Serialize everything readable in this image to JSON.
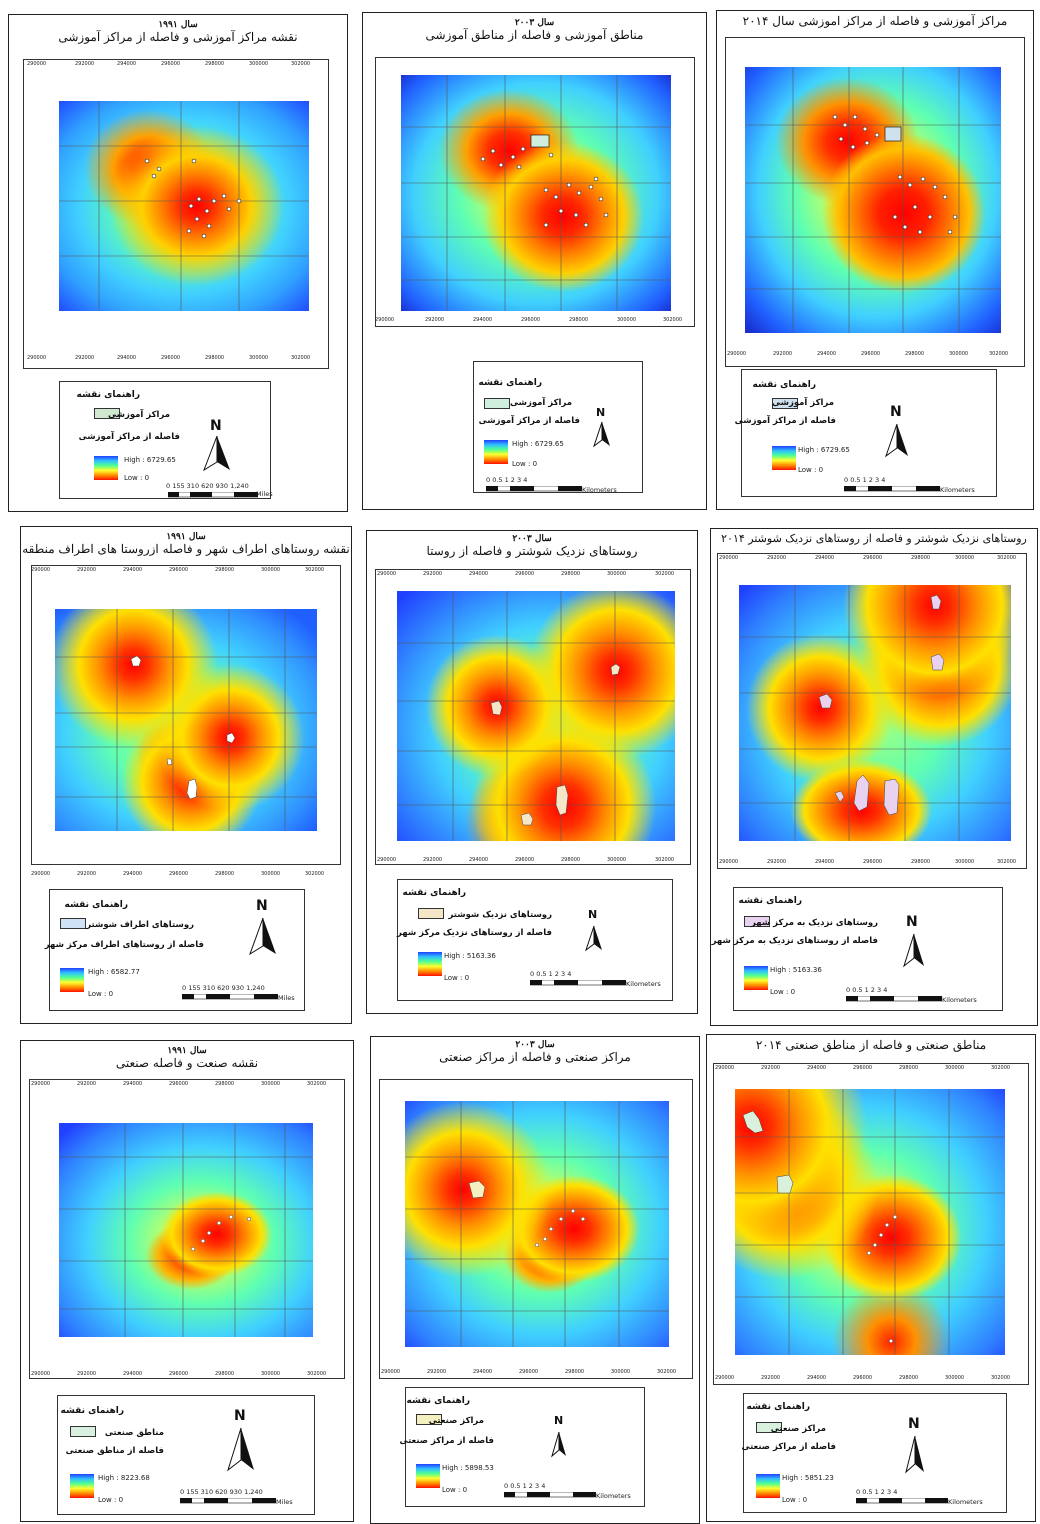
{
  "panels": [
    {
      "year": "سال ۱۹۹۱",
      "title": "نقشه مراکز آموزشی و فاصله از مراکز آموزشی",
      "legend_title": "راهنمای نقشه",
      "legend_item": "مراکز آموزشی",
      "legend_dist": "فاصله از مراکز آموزشی",
      "high": "High : 6729.65",
      "low": "Low : 0",
      "scale_labels": "0  155  310   620    930    1,240",
      "scale_unit": "Miles",
      "swatch_color": "#cfe8cf",
      "x_ticks": [
        "290000",
        "292000",
        "294000",
        "296000",
        "298000",
        "300000",
        "302000"
      ]
    },
    {
      "year": "سال ۲۰۰۳",
      "title": "مناطق آموزشی و فاصله از مناطق آموزشی",
      "legend_title": "راهنمای نقشه",
      "legend_item": "مراکز آموزشی",
      "legend_dist": "فاصله از مراکز آموزشی",
      "high": "High : 6729.65",
      "low": "Low : 0",
      "scale_labels": "0  0.5  1       2       3       4",
      "scale_unit": "Kilometers",
      "swatch_color": "#cfeede",
      "x_ticks": [
        "290000",
        "292000",
        "294000",
        "296000",
        "298000",
        "300000",
        "302000"
      ]
    },
    {
      "year": "",
      "title": "مراکز آموزشی و فاصله از مراکز اموزشی سال ۲۰۱۴",
      "legend_title": "راهنمای نقشه",
      "legend_item": "مراکز آموزشی",
      "legend_dist": "فاصله از مراکز آموزشی",
      "high": "High : 6729.65",
      "low": "Low : 0",
      "scale_labels": "0  0.5  1       2       3       4",
      "scale_unit": "Kilometers",
      "swatch_color": "#cfe0ee",
      "x_ticks": [
        "290000",
        "292000",
        "294000",
        "296000",
        "298000",
        "300000",
        "302000"
      ]
    },
    {
      "year": "سال ۱۹۹۱",
      "title": "نقشه روستاهای اطراف شهر و فاصله ازروستا های اطراف منطقه",
      "legend_title": "راهنمای نقشه",
      "legend_item": "روستاهای اطراف شوشتر",
      "legend_dist": "فاصله از روستاهای اطراف مرکز شهر",
      "high": "High : 6582.77",
      "low": "Low : 0",
      "scale_labels": "0  155  310    620    930    1,240",
      "scale_unit": "Miles",
      "swatch_color": "#cfe3f5",
      "x_ticks": [
        "290000",
        "292000",
        "294000",
        "296000",
        "298000",
        "300000",
        "302000"
      ]
    },
    {
      "year": "سال ۲۰۰۳",
      "title": "روستاهای نزدیک شوشتر و فاصله از روستا",
      "legend_title": "راهنمای نقشه",
      "legend_item": "روستاهای نزدیک شوشتر",
      "legend_dist": "فاصله از روستاهای نزدیک مرکز شهر",
      "high": "High : 5163.36",
      "low": "Low : 0",
      "scale_labels": "0  0.5  1       2       3       4",
      "scale_unit": "Kilometers",
      "swatch_color": "#f5e6c8",
      "x_ticks": [
        "290000",
        "292000",
        "294000",
        "296000",
        "298000",
        "300000",
        "302000"
      ]
    },
    {
      "year": "",
      "title": "روستاهای نزدیک شوشتر و فاصله از روستاهای نزدیک شوشتر ۲۰۱۴",
      "legend_title": "راهنمای نقشه",
      "legend_item": "روستاهای نزدیک به مرکز شهر",
      "legend_dist": "فاصله از روستاهای نزدیک به مرکز شهر",
      "high": "High : 5163.36",
      "low": "Low : 0",
      "scale_labels": "0  0.5  1       2       3       4",
      "scale_unit": "Kilometers",
      "swatch_color": "#e8d2f0",
      "x_ticks": [
        "290000",
        "292000",
        "294000",
        "296000",
        "298000",
        "300000",
        "302000"
      ]
    },
    {
      "year": "سال ۱۹۹۱",
      "title": "نقشه صنعت و فاصله صنعتی",
      "legend_title": "راهنمای نقشه",
      "legend_item": "مناطق صنعتی",
      "legend_dist": "فاصله از مناطق صنعتی",
      "high": "High : 8223.68",
      "low": "Low : 0",
      "scale_labels": "0  155  310    620    930    1,240",
      "scale_unit": "Miles",
      "swatch_color": "#d8f0e0",
      "x_ticks": [
        "290000",
        "292000",
        "294000",
        "296000",
        "298000",
        "300000",
        "302000"
      ]
    },
    {
      "year": "سال ۲۰۰۳",
      "title": "مراکز صنعتی و فاصله از مراکز صنعتی",
      "legend_title": "راهنمای نقشه",
      "legend_item": "مراکز صنعتی",
      "legend_dist": "فاصله از مراکز صنعتی",
      "high": "High : 5898.53",
      "low": "Low : 0",
      "scale_labels": "0  0.5  1       2       3       4",
      "scale_unit": "Kilometers",
      "swatch_color": "#f5f0c0",
      "x_ticks": [
        "290000",
        "292000",
        "294000",
        "296000",
        "298000",
        "300000",
        "302000"
      ]
    },
    {
      "year": "",
      "title": "مناطق صنعتی و فاصله از مناطق صنعتی ۲۰۱۴",
      "legend_title": "راهنمای نقشه",
      "legend_item": "مراکز صنعتی",
      "legend_dist": "فاصله از مراکز صنعتی",
      "high": "High : 5851.23",
      "low": "Low : 0",
      "scale_labels": "0  0.5  1       2       3       4",
      "scale_unit": "Kilometers",
      "swatch_color": "#d8f0dc",
      "x_ticks": [
        "290000",
        "292000",
        "294000",
        "296000",
        "298000",
        "300000",
        "302000"
      ]
    }
  ],
  "north_label": "N"
}
